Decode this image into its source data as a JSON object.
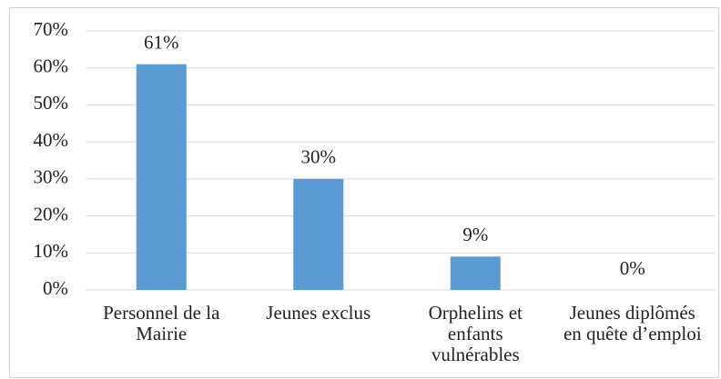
{
  "chart_data": {
    "type": "bar",
    "categories": [
      "Personnel de la Mairie",
      "Jeunes exclus",
      "Orphelins et enfants vulnérables",
      "Jeunes diplômés en quête d’emploi"
    ],
    "values": [
      61,
      30,
      9,
      0
    ],
    "value_labels": [
      "61%",
      "30%",
      "9%",
      "0%"
    ],
    "color": "#5b9bd5",
    "ylim": [
      0,
      70
    ],
    "yticks": [
      {
        "value": 0,
        "label": "0%"
      },
      {
        "value": 10,
        "label": "10%"
      },
      {
        "value": 20,
        "label": "20%"
      },
      {
        "value": 30,
        "label": "30%"
      },
      {
        "value": 40,
        "label": "40%"
      },
      {
        "value": 50,
        "label": "50%"
      },
      {
        "value": 60,
        "label": "60%"
      },
      {
        "value": 70,
        "label": "70%"
      }
    ],
    "grid": true
  }
}
